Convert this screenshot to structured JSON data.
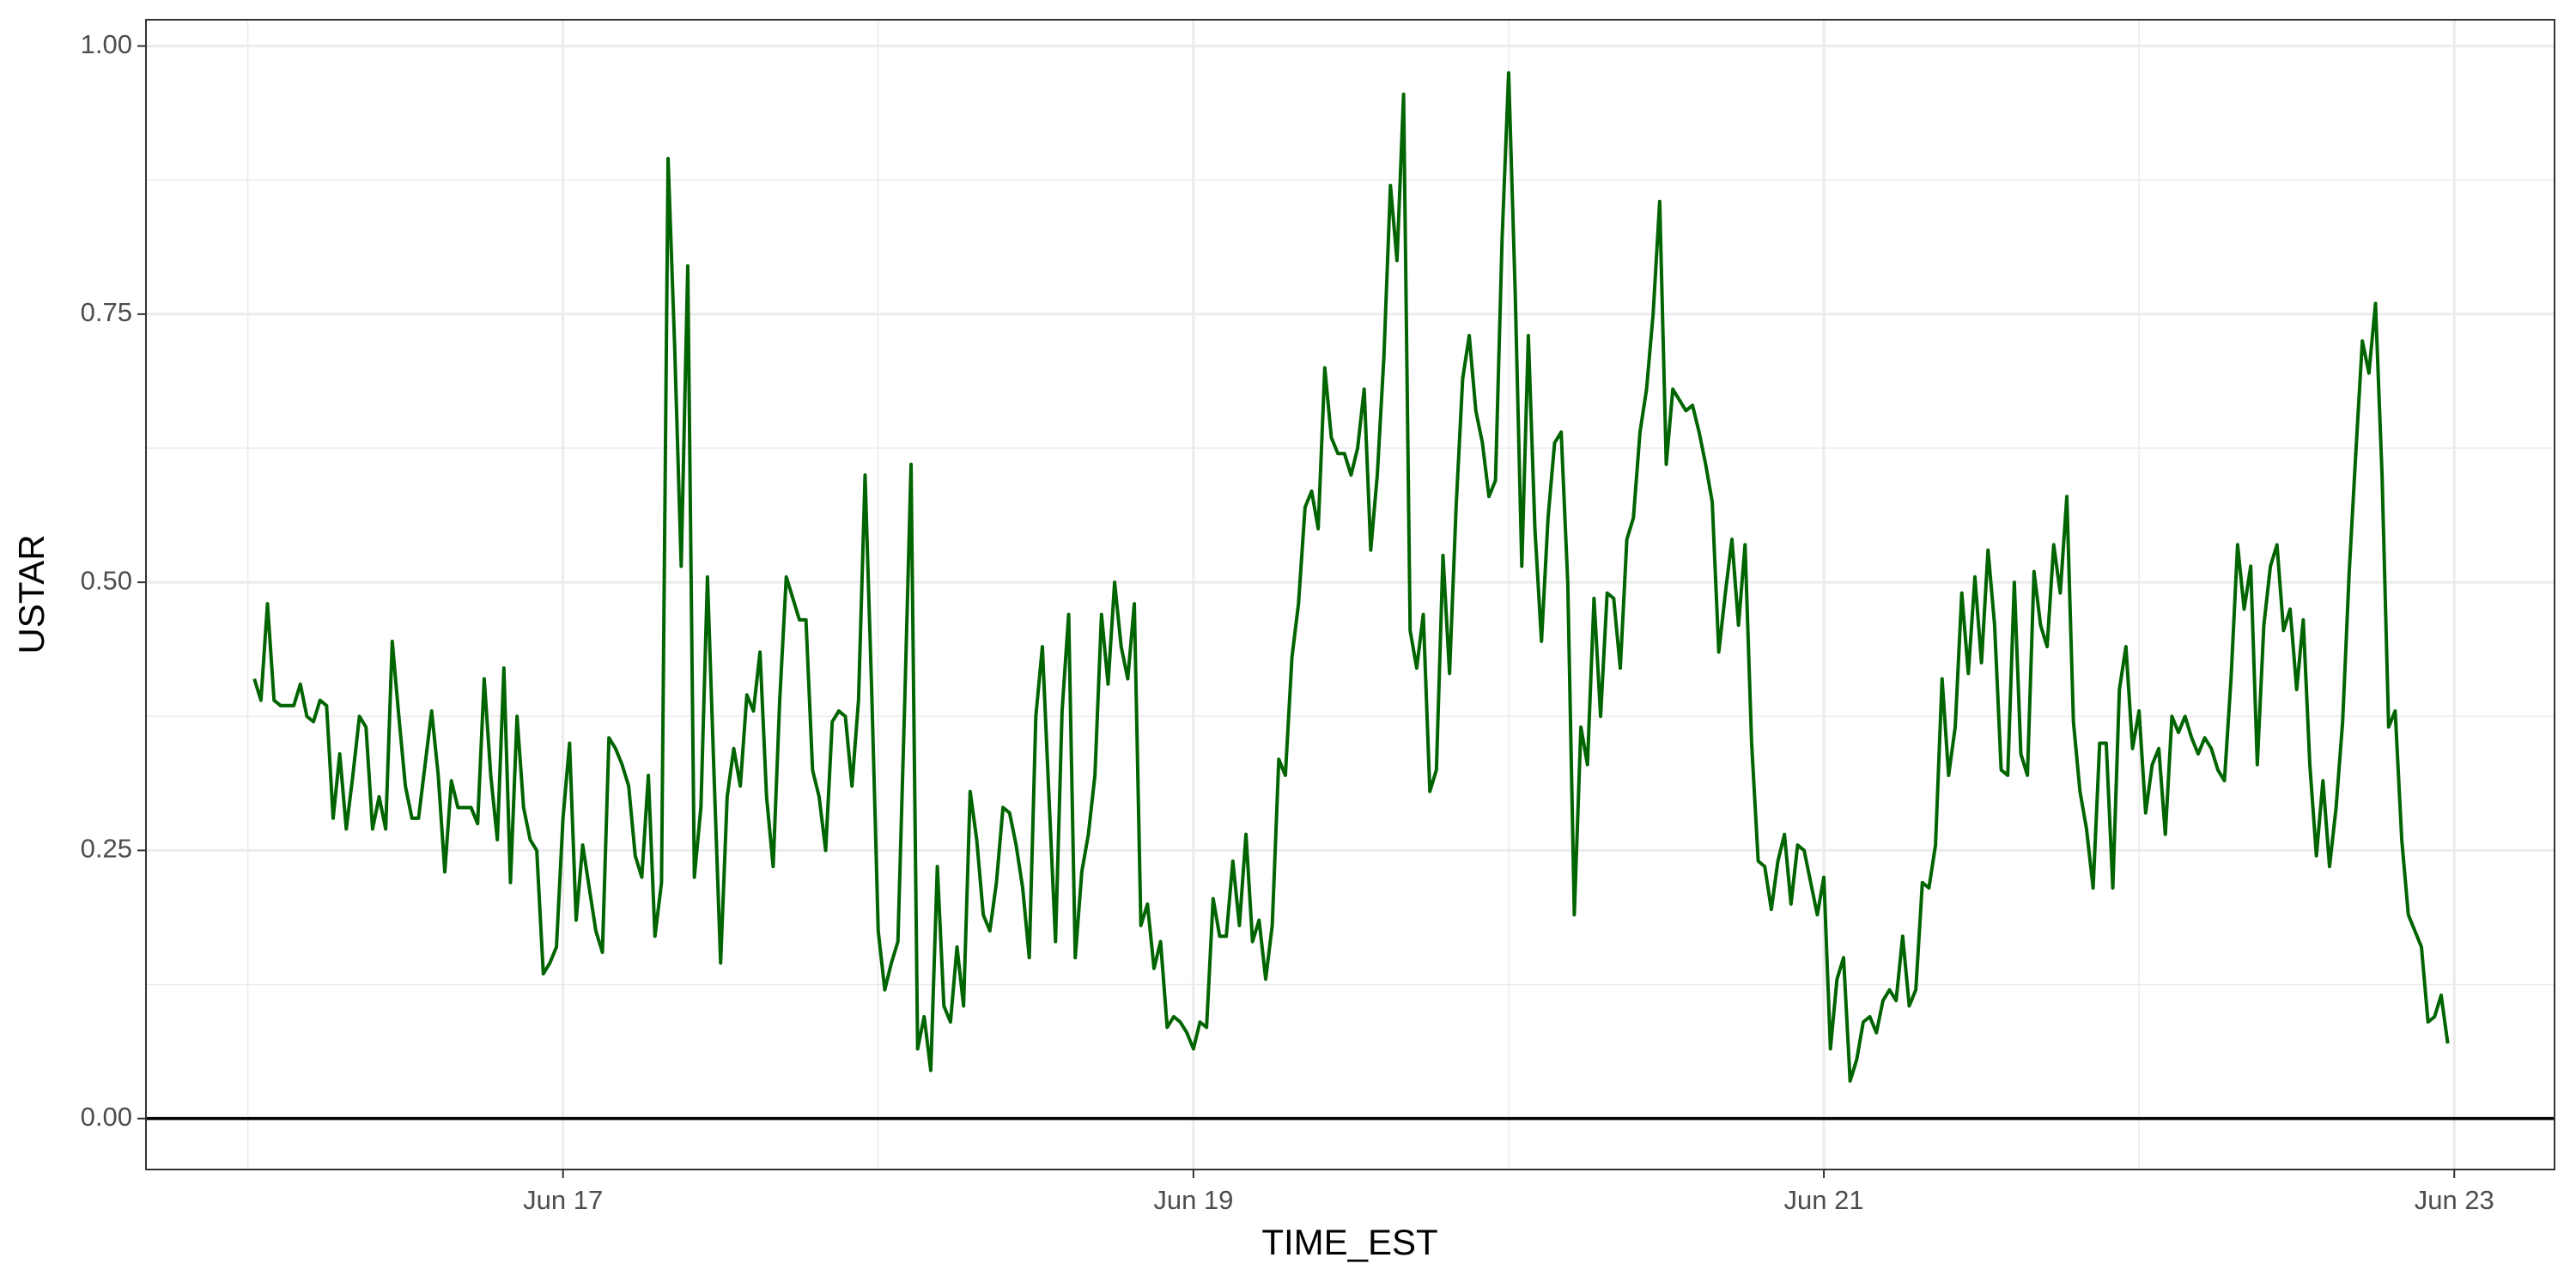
{
  "chart_data": {
    "type": "line",
    "xlabel": "TIME_EST",
    "ylabel": "USTAR",
    "color": "#006400",
    "xlim": [
      15.677,
      23.318
    ],
    "ylim": [
      -0.0475,
      1.0245
    ],
    "xticks": [
      {
        "value": 17,
        "label": "Jun 17"
      },
      {
        "value": 19,
        "label": "Jun 19"
      },
      {
        "value": 21,
        "label": "Jun 21"
      },
      {
        "value": 23,
        "label": "Jun 23"
      }
    ],
    "yticks": [
      {
        "value": 0,
        "label": "0.00"
      },
      {
        "value": 0.25,
        "label": "0.25"
      },
      {
        "value": 0.5,
        "label": "0.50"
      },
      {
        "value": 0.75,
        "label": "0.75"
      },
      {
        "value": 1,
        "label": "1.00"
      }
    ],
    "grid": true,
    "hline": 0,
    "x": [
      16.0208,
      16.0417,
      16.0625,
      16.0833,
      16.1042,
      16.125,
      16.1458,
      16.1667,
      16.1875,
      16.2083,
      16.2292,
      16.25,
      16.2708,
      16.2917,
      16.3125,
      16.3333,
      16.3542,
      16.375,
      16.3958,
      16.4167,
      16.4375,
      16.4583,
      16.4792,
      16.5,
      16.5208,
      16.5417,
      16.5625,
      16.5833,
      16.6042,
      16.625,
      16.6458,
      16.6667,
      16.6875,
      16.7083,
      16.7292,
      16.75,
      16.7708,
      16.7917,
      16.8125,
      16.8333,
      16.8542,
      16.875,
      16.8958,
      16.9167,
      16.9375,
      16.9583,
      16.9792,
      17,
      17.0208,
      17.0417,
      17.0625,
      17.0833,
      17.1042,
      17.125,
      17.1458,
      17.1667,
      17.1875,
      17.2083,
      17.2292,
      17.25,
      17.2708,
      17.2917,
      17.3125,
      17.3333,
      17.3542,
      17.375,
      17.3958,
      17.4167,
      17.4375,
      17.4583,
      17.4792,
      17.5,
      17.5208,
      17.5417,
      17.5625,
      17.5833,
      17.6042,
      17.625,
      17.6458,
      17.6667,
      17.6875,
      17.7083,
      17.7292,
      17.75,
      17.7708,
      17.7917,
      17.8125,
      17.8333,
      17.8542,
      17.875,
      17.8958,
      17.9167,
      17.9375,
      17.9583,
      17.9792,
      18,
      18.0208,
      18.0417,
      18.0625,
      18.0833,
      18.1042,
      18.125,
      18.1458,
      18.1667,
      18.1875,
      18.2083,
      18.2292,
      18.25,
      18.2708,
      18.2917,
      18.3125,
      18.3333,
      18.3542,
      18.375,
      18.3958,
      18.4167,
      18.4375,
      18.4583,
      18.4792,
      18.5,
      18.5208,
      18.5417,
      18.5625,
      18.5833,
      18.6042,
      18.625,
      18.6458,
      18.6667,
      18.6875,
      18.7083,
      18.7292,
      18.75,
      18.7708,
      18.7917,
      18.8125,
      18.8333,
      18.8542,
      18.875,
      18.8958,
      18.9167,
      18.9375,
      18.9583,
      18.9792,
      19,
      19.0208,
      19.0417,
      19.0625,
      19.0833,
      19.1042,
      19.125,
      19.1458,
      19.1667,
      19.1875,
      19.2083,
      19.2292,
      19.25,
      19.2708,
      19.2917,
      19.3125,
      19.3333,
      19.3542,
      19.375,
      19.3958,
      19.4167,
      19.4375,
      19.4583,
      19.4792,
      19.5,
      19.5208,
      19.5417,
      19.5625,
      19.5833,
      19.6042,
      19.625,
      19.6458,
      19.6667,
      19.6875,
      19.7083,
      19.7292,
      19.75,
      19.7708,
      19.7917,
      19.8125,
      19.8333,
      19.8542,
      19.875,
      19.8958,
      19.9167,
      19.9375,
      19.9583,
      19.9792,
      20,
      20.0208,
      20.0417,
      20.0625,
      20.0833,
      20.1042,
      20.125,
      20.1458,
      20.1667,
      20.1875,
      20.2083,
      20.2292,
      20.25,
      20.2708,
      20.2917,
      20.3125,
      20.3333,
      20.3542,
      20.375,
      20.3958,
      20.4167,
      20.4375,
      20.4583,
      20.4792,
      20.5,
      20.5208,
      20.5417,
      20.5625,
      20.5833,
      20.6042,
      20.625,
      20.6458,
      20.6667,
      20.6875,
      20.7083,
      20.7292,
      20.75,
      20.7708,
      20.7917,
      20.8125,
      20.8333,
      20.8542,
      20.875,
      20.8958,
      20.9167,
      20.9375,
      20.9583,
      20.9792,
      21,
      21.0208,
      21.0417,
      21.0625,
      21.0833,
      21.1042,
      21.125,
      21.1458,
      21.1667,
      21.1875,
      21.2083,
      21.2292,
      21.25,
      21.2708,
      21.2917,
      21.3125,
      21.3333,
      21.3542,
      21.375,
      21.3958,
      21.4167,
      21.4375,
      21.4583,
      21.4792,
      21.5,
      21.5208,
      21.5417,
      21.5625,
      21.5833,
      21.6042,
      21.625,
      21.6458,
      21.6667,
      21.6875,
      21.7083,
      21.7292,
      21.75,
      21.7708,
      21.7917,
      21.8125,
      21.8333,
      21.8542,
      21.875,
      21.8958,
      21.9167,
      21.9375,
      21.9583,
      21.9792,
      22,
      22.0208,
      22.0417,
      22.0625,
      22.0833,
      22.1042,
      22.125,
      22.1458,
      22.1667,
      22.1875,
      22.2083,
      22.2292,
      22.25,
      22.2708,
      22.2917,
      22.3125,
      22.3333,
      22.3542,
      22.375,
      22.3958,
      22.4167,
      22.4375,
      22.4583,
      22.4792,
      22.5,
      22.5208,
      22.5417,
      22.5625,
      22.5833,
      22.6042,
      22.625,
      22.6458,
      22.6667,
      22.6875,
      22.7083,
      22.7292,
      22.75,
      22.7708,
      22.7917,
      22.8125,
      22.8333,
      22.8542,
      22.875,
      22.8958,
      22.9167,
      22.9375,
      22.9583,
      22.9792
    ],
    "values": [
      0.41,
      0.39,
      0.48,
      0.39,
      0.385,
      0.385,
      0.385,
      0.405,
      0.375,
      0.37,
      0.39,
      0.385,
      0.28,
      0.34,
      0.27,
      0.32,
      0.375,
      0.365,
      0.27,
      0.3,
      0.27,
      0.445,
      0.375,
      0.31,
      0.28,
      0.28,
      0.33,
      0.38,
      0.32,
      0.23,
      0.315,
      0.29,
      0.29,
      0.29,
      0.275,
      0.41,
      0.32,
      0.26,
      0.42,
      0.22,
      0.375,
      0.29,
      0.26,
      0.25,
      0.135,
      0.145,
      0.16,
      0.28,
      0.35,
      0.185,
      0.255,
      0.215,
      0.175,
      0.155,
      0.355,
      0.345,
      0.33,
      0.31,
      0.245,
      0.225,
      0.32,
      0.17,
      0.22,
      0.895,
      0.72,
      0.515,
      0.795,
      0.225,
      0.29,
      0.505,
      0.32,
      0.145,
      0.3,
      0.345,
      0.31,
      0.395,
      0.38,
      0.435,
      0.3,
      0.235,
      0.39,
      0.505,
      0.485,
      0.465,
      0.465,
      0.325,
      0.3,
      0.25,
      0.37,
      0.38,
      0.375,
      0.31,
      0.39,
      0.6,
      0.4,
      0.175,
      0.12,
      0.145,
      0.165,
      0.38,
      0.61,
      0.065,
      0.095,
      0.045,
      0.235,
      0.105,
      0.09,
      0.16,
      0.105,
      0.305,
      0.26,
      0.19,
      0.175,
      0.22,
      0.29,
      0.285,
      0.255,
      0.215,
      0.15,
      0.375,
      0.44,
      0.3,
      0.165,
      0.38,
      0.47,
      0.15,
      0.23,
      0.265,
      0.32,
      0.47,
      0.405,
      0.5,
      0.44,
      0.41,
      0.48,
      0.18,
      0.2,
      0.14,
      0.165,
      0.085,
      0.095,
      0.09,
      0.08,
      0.065,
      0.09,
      0.085,
      0.205,
      0.17,
      0.17,
      0.24,
      0.18,
      0.265,
      0.165,
      0.185,
      0.13,
      0.18,
      0.335,
      0.32,
      0.43,
      0.48,
      0.57,
      0.585,
      0.55,
      0.7,
      0.635,
      0.62,
      0.62,
      0.6,
      0.625,
      0.68,
      0.53,
      0.6,
      0.71,
      0.87,
      0.8,
      0.955,
      0.455,
      0.42,
      0.47,
      0.305,
      0.325,
      0.525,
      0.415,
      0.57,
      0.69,
      0.73,
      0.66,
      0.63,
      0.58,
      0.595,
      0.82,
      0.975,
      0.77,
      0.515,
      0.73,
      0.55,
      0.445,
      0.56,
      0.63,
      0.64,
      0.5,
      0.19,
      0.365,
      0.33,
      0.485,
      0.375,
      0.49,
      0.485,
      0.42,
      0.54,
      0.56,
      0.64,
      0.68,
      0.75,
      0.855,
      0.61,
      0.68,
      0.67,
      0.66,
      0.665,
      0.64,
      0.61,
      0.575,
      0.435,
      0.49,
      0.54,
      0.46,
      0.535,
      0.35,
      0.24,
      0.235,
      0.195,
      0.24,
      0.265,
      0.2,
      0.255,
      0.25,
      0.22,
      0.19,
      0.225,
      0.065,
      0.13,
      0.15,
      0.035,
      0.055,
      0.09,
      0.095,
      0.08,
      0.11,
      0.12,
      0.11,
      0.17,
      0.105,
      0.12,
      0.22,
      0.215,
      0.255,
      0.41,
      0.32,
      0.365,
      0.49,
      0.415,
      0.505,
      0.425,
      0.53,
      0.46,
      0.325,
      0.32,
      0.5,
      0.34,
      0.32,
      0.51,
      0.46,
      0.44,
      0.535,
      0.49,
      0.58,
      0.37,
      0.305,
      0.27,
      0.215,
      0.35,
      0.35,
      0.215,
      0.4,
      0.44,
      0.345,
      0.38,
      0.285,
      0.33,
      0.345,
      0.265,
      0.375,
      0.36,
      0.375,
      0.355,
      0.34,
      0.355,
      0.345,
      0.325,
      0.315,
      0.41,
      0.535,
      0.475,
      0.515,
      0.33,
      0.46,
      0.515,
      0.535,
      0.455,
      0.475,
      0.4,
      0.465,
      0.33,
      0.245,
      0.315,
      0.235,
      0.29,
      0.37,
      0.51,
      0.62,
      0.725,
      0.695,
      0.76,
      0.6,
      0.365,
      0.38,
      0.26,
      0.19,
      0.175,
      0.16,
      0.09,
      0.095,
      0.115,
      0.07
    ]
  }
}
